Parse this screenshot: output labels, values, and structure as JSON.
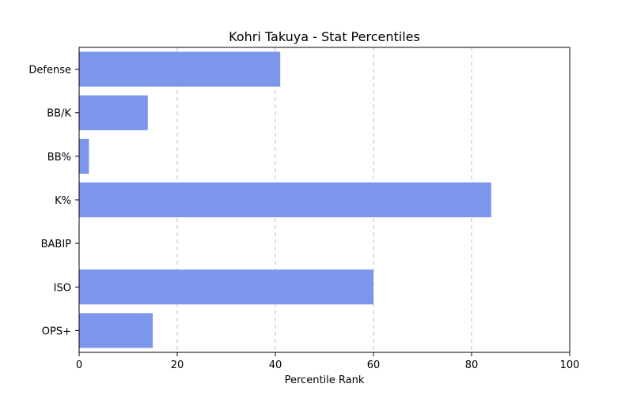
{
  "chart_data": {
    "type": "bar",
    "orientation": "horizontal",
    "title": "Kohri Takuya - Stat Percentiles",
    "xlabel": "Percentile Rank",
    "ylabel": "",
    "categories": [
      "Defense",
      "BB/K",
      "BB%",
      "K%",
      "BABIP",
      "ISO",
      "OPS+"
    ],
    "values": [
      41,
      14,
      2,
      84,
      0,
      60,
      15
    ],
    "xlim": [
      0,
      100
    ],
    "xticks": [
      0,
      20,
      40,
      60,
      80,
      100
    ],
    "grid": "x-dashed",
    "bar_color": "#7b96ea"
  }
}
